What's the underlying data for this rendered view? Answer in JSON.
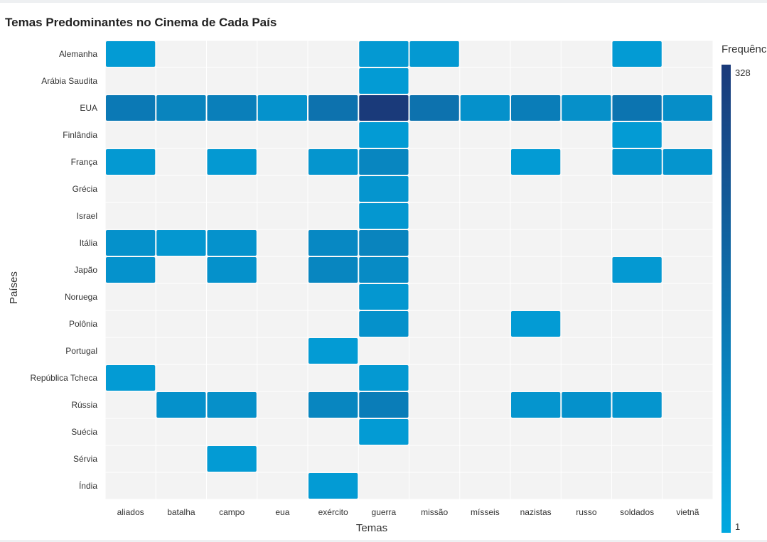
{
  "page": {
    "title": "Temas Predominantes no Cinema de Cada País"
  },
  "chart_data": {
    "type": "heatmap",
    "title": "Temas Predominantes no Cinema de Cada País",
    "xlabel": "Temas",
    "ylabel": "Países",
    "legend_title": "Frequência",
    "legend_min_label": "1",
    "legend_max_label": "328",
    "color_range": [
      1,
      328
    ],
    "colors": {
      "low": "#00a8e0",
      "high": "#1a3a7a",
      "empty": "#f3f3f3"
    },
    "x": [
      "aliados",
      "batalha",
      "campo",
      "eua",
      "exército",
      "guerra",
      "missão",
      "mísseis",
      "nazistas",
      "russo",
      "soldados",
      "vietnã"
    ],
    "y": [
      "Alemanha",
      "Arábia Saudita",
      "EUA",
      "Finlândia",
      "França",
      "Grécia",
      "Israel",
      "Itália",
      "Japão",
      "Noruega",
      "Polônia",
      "Portugal",
      "República Tcheca",
      "Rússia",
      "Suécia",
      "Sérvia",
      "Índia"
    ],
    "z": [
      [
        8,
        null,
        null,
        null,
        null,
        10,
        10,
        null,
        null,
        null,
        8,
        null
      ],
      [
        null,
        null,
        null,
        null,
        null,
        8,
        null,
        null,
        null,
        null,
        null,
        null
      ],
      [
        70,
        45,
        55,
        18,
        90,
        328,
        90,
        20,
        60,
        22,
        85,
        25
      ],
      [
        null,
        null,
        null,
        null,
        null,
        8,
        null,
        null,
        null,
        null,
        8,
        null
      ],
      [
        10,
        null,
        10,
        null,
        15,
        40,
        null,
        null,
        8,
        null,
        15,
        15
      ],
      [
        null,
        null,
        null,
        null,
        null,
        15,
        null,
        null,
        null,
        null,
        null,
        null
      ],
      [
        null,
        null,
        null,
        null,
        null,
        12,
        null,
        null,
        null,
        null,
        null,
        null
      ],
      [
        20,
        12,
        18,
        null,
        35,
        45,
        null,
        null,
        null,
        null,
        null,
        null
      ],
      [
        18,
        null,
        20,
        null,
        40,
        30,
        null,
        null,
        null,
        null,
        10,
        null
      ],
      [
        null,
        null,
        null,
        null,
        null,
        12,
        null,
        null,
        null,
        null,
        null,
        null
      ],
      [
        null,
        null,
        null,
        null,
        null,
        20,
        null,
        null,
        8,
        null,
        null,
        null
      ],
      [
        null,
        null,
        null,
        null,
        8,
        null,
        null,
        null,
        null,
        null,
        null,
        null
      ],
      [
        8,
        null,
        null,
        null,
        null,
        10,
        null,
        null,
        null,
        null,
        null,
        null
      ],
      [
        null,
        20,
        22,
        null,
        40,
        60,
        null,
        null,
        15,
        20,
        15,
        null
      ],
      [
        null,
        null,
        null,
        null,
        null,
        8,
        null,
        null,
        null,
        null,
        null,
        null
      ],
      [
        null,
        null,
        8,
        null,
        null,
        null,
        null,
        null,
        null,
        null,
        null,
        null
      ],
      [
        null,
        null,
        null,
        null,
        8,
        null,
        null,
        null,
        null,
        null,
        null,
        null
      ]
    ]
  }
}
